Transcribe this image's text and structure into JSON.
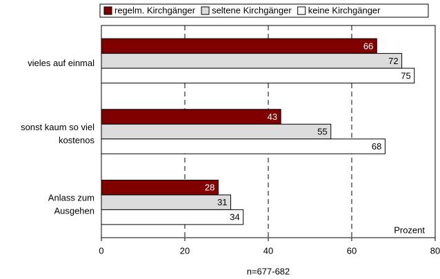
{
  "chart_data": {
    "type": "bar",
    "orientation": "horizontal",
    "categories": [
      [
        "vieles auf einmal"
      ],
      [
        "sonst kaum so viel",
        "kostenos"
      ],
      [
        "Anlass zum",
        "Ausgehen"
      ]
    ],
    "series": [
      {
        "name": "regelm. Kirchgänger",
        "color": "#800000",
        "label_color": "#ffffff",
        "values": [
          66,
          43,
          28
        ]
      },
      {
        "name": "seltene Kirchgänger",
        "color": "#dcdcdc",
        "label_color": "#000000",
        "values": [
          72,
          55,
          31
        ]
      },
      {
        "name": "keine Kirchgänger",
        "color": "#ffffff",
        "label_color": "#000000",
        "values": [
          75,
          68,
          34
        ]
      }
    ],
    "xlim": [
      0,
      80
    ],
    "xticks": [
      0,
      20,
      40,
      60,
      80
    ],
    "grid": true,
    "legend": "top",
    "axis_unit": "Prozent",
    "note": "n=677-682"
  }
}
